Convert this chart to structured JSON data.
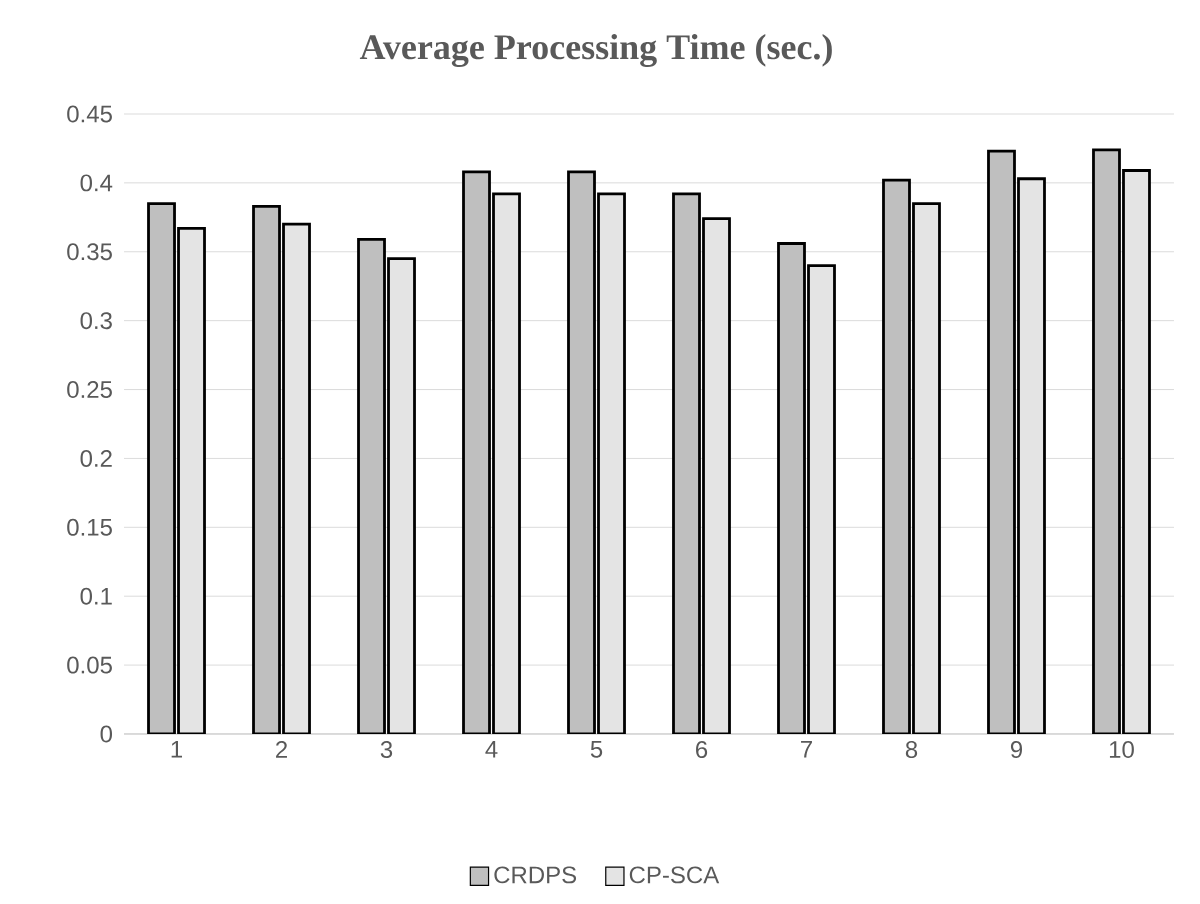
{
  "chart_data": {
    "type": "bar",
    "title": "Average Processing Time (sec.)",
    "categories": [
      "1",
      "2",
      "3",
      "4",
      "5",
      "6",
      "7",
      "8",
      "9",
      "10"
    ],
    "series": [
      {
        "name": "CRDPS",
        "color": "#bfbfbf",
        "values": [
          0.385,
          0.383,
          0.359,
          0.408,
          0.408,
          0.392,
          0.356,
          0.402,
          0.423,
          0.424
        ]
      },
      {
        "name": "CP-SCA",
        "color": "#e4e4e4",
        "values": [
          0.367,
          0.37,
          0.345,
          0.392,
          0.392,
          0.374,
          0.34,
          0.385,
          0.403,
          0.409
        ]
      }
    ],
    "ylim": [
      0,
      0.45
    ],
    "yticks": [
      0,
      0.05,
      0.1,
      0.15,
      0.2,
      0.25,
      0.3,
      0.35,
      0.4,
      0.45
    ],
    "grid": "y",
    "legend": "bottom"
  }
}
